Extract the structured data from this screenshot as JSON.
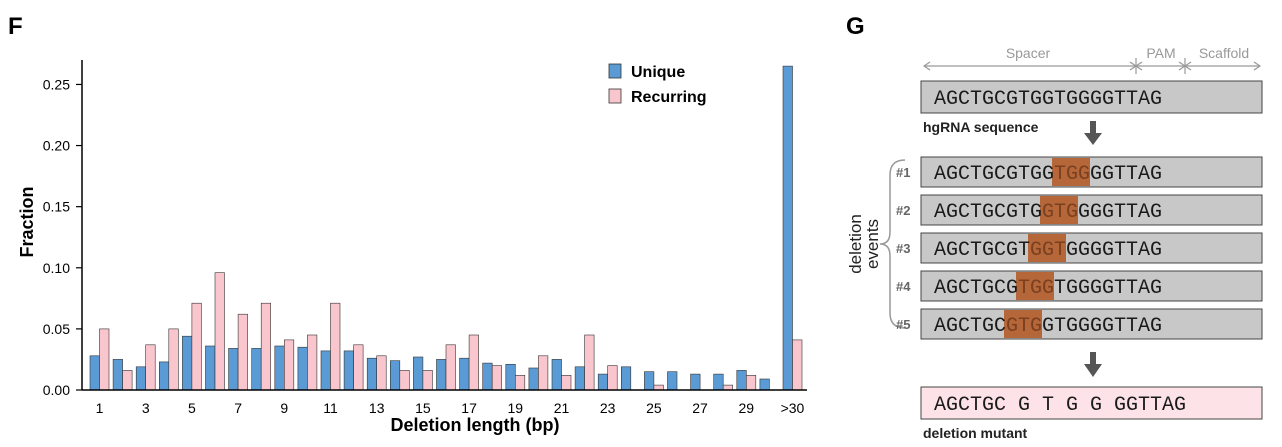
{
  "panels": {
    "left_letter": "F",
    "right_letter": "G"
  },
  "chart_data": {
    "type": "bar",
    "xlabel": "Deletion length (bp)",
    "ylabel": "Fraction",
    "ylim": [
      0,
      0.27
    ],
    "yticks": [
      "0.00",
      "0.05",
      "0.10",
      "0.15",
      "0.20",
      "0.25"
    ],
    "categories": [
      "1",
      "2",
      "3",
      "4",
      "5",
      "6",
      "7",
      "8",
      "9",
      "10",
      "11",
      "12",
      "13",
      "14",
      "15",
      "16",
      "17",
      "18",
      "19",
      "20",
      "21",
      "22",
      "23",
      "24",
      "25",
      "26",
      "27",
      "28",
      "29",
      "30",
      ">30"
    ],
    "x_tick_labels": [
      "1",
      "3",
      "5",
      "7",
      "9",
      "11",
      "13",
      "15",
      "17",
      "19",
      "21",
      "23",
      "25",
      "27",
      "29",
      ">30"
    ],
    "legend": {
      "position": "top-right"
    },
    "series": [
      {
        "name": "Unique",
        "color": "#5b9bd5",
        "values": [
          0.028,
          0.025,
          0.019,
          0.023,
          0.044,
          0.036,
          0.034,
          0.034,
          0.036,
          0.035,
          0.032,
          0.032,
          0.026,
          0.024,
          0.027,
          0.025,
          0.026,
          0.022,
          0.021,
          0.018,
          0.025,
          0.019,
          0.013,
          0.019,
          0.015,
          0.015,
          0.013,
          0.013,
          0.016,
          0.009,
          0.265
        ]
      },
      {
        "name": "Recurring",
        "color": "#f9c6ce",
        "values": [
          0.05,
          0.016,
          0.037,
          0.05,
          0.071,
          0.096,
          0.062,
          0.071,
          0.041,
          0.045,
          0.071,
          0.037,
          0.028,
          0.016,
          0.016,
          0.037,
          0.045,
          0.02,
          0.012,
          0.028,
          0.012,
          0.045,
          0.02,
          0.0,
          0.004,
          0.0,
          0.0,
          0.004,
          0.012,
          0.0,
          0.041
        ]
      }
    ]
  },
  "diagram": {
    "regions": [
      "Spacer",
      "PAM",
      "Scaffold"
    ],
    "hgrna": {
      "sequence": "AGCTGCGTGGTGGGGTTAG",
      "label": "hgRNA sequence"
    },
    "events_label_line1": "deletion",
    "events_label_line2": "events",
    "events": [
      {
        "id": "#1",
        "pre": "AGCTGCGTGG",
        "del": "TGG",
        "post": "GGTTAG"
      },
      {
        "id": "#2",
        "pre": "AGCTGCGTG",
        "del": "GTG",
        "post": "GGGTTAG"
      },
      {
        "id": "#3",
        "pre": "AGCTGCGT",
        "del": "GGT",
        "post": "GGGGTTAG"
      },
      {
        "id": "#4",
        "pre": "AGCTGCG",
        "del": "TGG",
        "post": "TGGGGTTAG"
      },
      {
        "id": "#5",
        "pre": "AGCTGC",
        "del": "GTG",
        "post": "GTGGGGTTAG"
      }
    ],
    "mutant": {
      "sequence": "AGCTGC G T G G GGTTAG",
      "label": "deletion mutant"
    },
    "colors": {
      "seq_box": "#c8c8c8",
      "deletion": "#b5673a",
      "mutant_box": "#fde3e8",
      "arrow": "#555555"
    }
  }
}
